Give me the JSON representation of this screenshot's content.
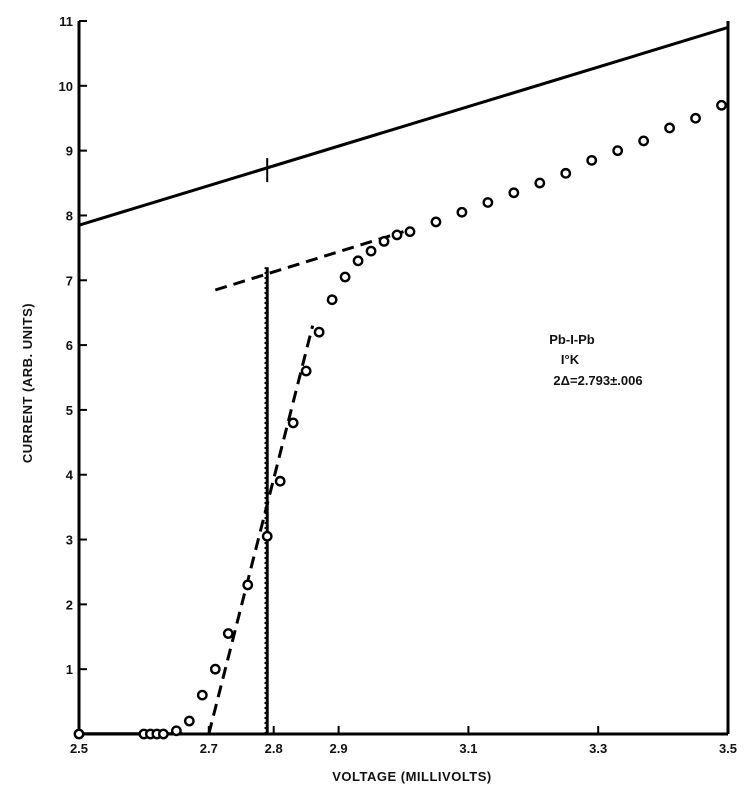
{
  "chart_data": {
    "type": "scatter",
    "xlabel": "VOLTAGE (MILLIVOLTS)",
    "ylabel": "CURRENT  (ARB. UNITS)",
    "xlim": [
      2.5,
      3.5
    ],
    "ylim": [
      0,
      11
    ],
    "x_tick_labels": [
      "2.5",
      "2.7",
      "2.8",
      "2.9",
      "3.1",
      "3.3",
      "3.5"
    ],
    "x_tick_values": [
      2.5,
      2.7,
      2.8,
      2.9,
      3.1,
      3.3,
      3.5
    ],
    "y_tick_labels": [
      "1",
      "2",
      "3",
      "4",
      "5",
      "6",
      "7",
      "8",
      "9",
      "10",
      "11"
    ],
    "y_tick_values": [
      1,
      2,
      3,
      4,
      5,
      6,
      7,
      8,
      9,
      10,
      11
    ],
    "grid": false,
    "annotation": [
      "Pb-I-Pb",
      "I°K",
      "2Δ=2.793±.006"
    ],
    "points": [
      {
        "x": 2.5,
        "y": 0
      },
      {
        "x": 2.6,
        "y": 0
      },
      {
        "x": 2.61,
        "y": 0
      },
      {
        "x": 2.62,
        "y": 0
      },
      {
        "x": 2.63,
        "y": 0
      },
      {
        "x": 2.65,
        "y": 0.05
      },
      {
        "x": 2.67,
        "y": 0.2
      },
      {
        "x": 2.69,
        "y": 0.6
      },
      {
        "x": 2.71,
        "y": 1.0
      },
      {
        "x": 2.73,
        "y": 1.55
      },
      {
        "x": 2.76,
        "y": 2.3
      },
      {
        "x": 2.79,
        "y": 3.05
      },
      {
        "x": 2.81,
        "y": 3.9
      },
      {
        "x": 2.83,
        "y": 4.8
      },
      {
        "x": 2.85,
        "y": 5.6
      },
      {
        "x": 2.87,
        "y": 6.2
      },
      {
        "x": 2.89,
        "y": 6.7
      },
      {
        "x": 2.91,
        "y": 7.05
      },
      {
        "x": 2.93,
        "y": 7.3
      },
      {
        "x": 2.95,
        "y": 7.45
      },
      {
        "x": 2.97,
        "y": 7.6
      },
      {
        "x": 2.99,
        "y": 7.7
      },
      {
        "x": 3.01,
        "y": 7.75
      },
      {
        "x": 3.05,
        "y": 7.9
      },
      {
        "x": 3.09,
        "y": 8.05
      },
      {
        "x": 3.13,
        "y": 8.2
      },
      {
        "x": 3.17,
        "y": 8.35
      },
      {
        "x": 3.21,
        "y": 8.5
      },
      {
        "x": 3.25,
        "y": 8.65
      },
      {
        "x": 3.29,
        "y": 8.85
      },
      {
        "x": 3.33,
        "y": 9.0
      },
      {
        "x": 3.37,
        "y": 9.15
      },
      {
        "x": 3.41,
        "y": 9.35
      },
      {
        "x": 3.45,
        "y": 9.5
      },
      {
        "x": 3.49,
        "y": 9.7
      }
    ],
    "solid_line": [
      {
        "x": 2.5,
        "y": 7.85
      },
      {
        "x": 3.5,
        "y": 10.9
      }
    ],
    "solid_line_marker": {
      "x": 2.79,
      "y": 8.7
    },
    "dashed_upper_line": [
      {
        "x": 2.71,
        "y": 6.85
      },
      {
        "x": 3.0,
        "y": 7.75
      }
    ],
    "dashed_rise_line": [
      {
        "x": 2.7,
        "y": 0
      },
      {
        "x": 2.86,
        "y": 6.3
      }
    ],
    "vertical_line": {
      "x": 2.79,
      "y_from": 0,
      "y_to": 7.2
    },
    "vertical_dotted_offset": 2.787
  }
}
